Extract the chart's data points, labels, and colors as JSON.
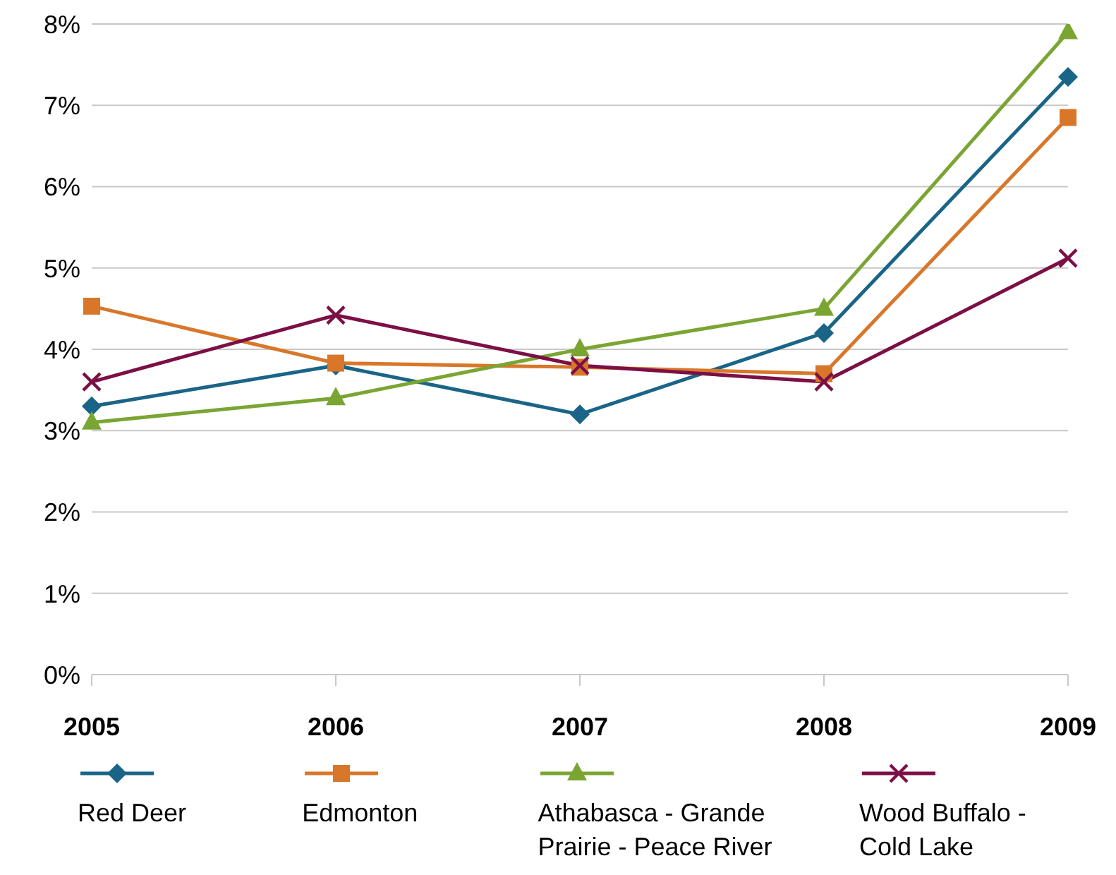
{
  "chart_data": {
    "type": "line",
    "categories": [
      "2005",
      "2006",
      "2007",
      "2008",
      "2009"
    ],
    "series": [
      {
        "name": "Red Deer",
        "color": "#1a6587",
        "marker": "diamond",
        "values": [
          3.3,
          3.8,
          3.2,
          4.2,
          7.35
        ]
      },
      {
        "name": "Edmonton",
        "color": "#d8772a",
        "marker": "square",
        "values": [
          4.53,
          3.83,
          3.78,
          3.7,
          6.85
        ]
      },
      {
        "name": "Athabasca - Grande Prairie - Peace River",
        "color": "#7aa533",
        "marker": "triangle",
        "values": [
          3.1,
          3.4,
          4.0,
          4.5,
          7.9
        ]
      },
      {
        "name": "Wood Buffalo - Cold Lake",
        "color": "#7c0f45",
        "marker": "cross",
        "values": [
          3.6,
          4.42,
          3.8,
          3.6,
          5.12
        ]
      }
    ],
    "ylim": [
      0,
      8
    ],
    "yticks": [
      {
        "value": 0,
        "label": "0%"
      },
      {
        "value": 1,
        "label": "1%"
      },
      {
        "value": 2,
        "label": "2%"
      },
      {
        "value": 3,
        "label": "3%"
      },
      {
        "value": 4,
        "label": "4%"
      },
      {
        "value": 5,
        "label": "5%"
      },
      {
        "value": 6,
        "label": "6%"
      },
      {
        "value": 7,
        "label": "7%"
      },
      {
        "value": 8,
        "label": "8%"
      }
    ],
    "grid": "y",
    "legend": "bottom",
    "line_style": "solid"
  }
}
